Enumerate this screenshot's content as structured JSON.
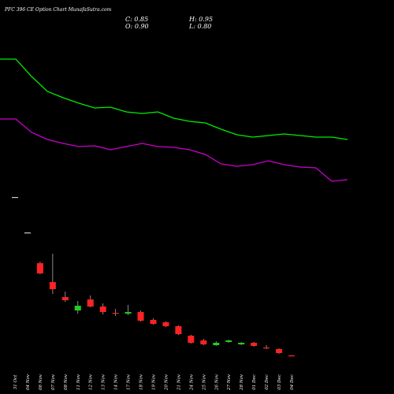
{
  "header": {
    "title": "PFC 396  CE Option  Chart MunafaSutra.com",
    "open_label": "O:",
    "open_value": "0.90",
    "high_label": "H:",
    "high_value": "0.95",
    "low_label": "L:",
    "low_value": "0.80",
    "close_label": "C:",
    "close_value": "0.85"
  },
  "colors": {
    "up": "#22cc22",
    "down": "#ff2222",
    "neutral": "#cccccc",
    "ma_fast": "#00ee00",
    "ma_slow": "#cc00cc",
    "background": "#000000"
  },
  "chart_data": {
    "type": "candlestick",
    "categories": [
      "31 Oct",
      "04 Nov",
      "06 Nov",
      "07 Nov",
      "08 Nov",
      "11 Nov",
      "12 Nov",
      "13 Nov",
      "14 Nov",
      "17 Nov",
      "18 Nov",
      "19 Nov",
      "20 Nov",
      "21 Nov",
      "24 Nov",
      "25 Nov",
      "26 Nov",
      "27 Nov",
      "28 Nov",
      "01 Dec",
      "02 Dec",
      "03 Dec",
      "04 Dec"
    ],
    "candles": [
      {
        "o": 21.0,
        "h": 21.0,
        "l": 21.0,
        "c": 21.0
      },
      {
        "o": 16.5,
        "h": 16.5,
        "l": 16.5,
        "c": 16.5
      },
      {
        "o": 12.6,
        "h": 12.8,
        "l": 11.2,
        "c": 11.3
      },
      {
        "o": 10.2,
        "h": 13.8,
        "l": 8.7,
        "c": 9.3
      },
      {
        "o": 8.3,
        "h": 9.0,
        "l": 7.7,
        "c": 7.9
      },
      {
        "o": 6.6,
        "h": 7.8,
        "l": 6.2,
        "c": 7.2
      },
      {
        "o": 8.0,
        "h": 8.5,
        "l": 7.0,
        "c": 7.1
      },
      {
        "o": 7.1,
        "h": 7.5,
        "l": 6.1,
        "c": 6.4
      },
      {
        "o": 6.3,
        "h": 6.8,
        "l": 5.9,
        "c": 6.2
      },
      {
        "o": 6.2,
        "h": 7.3,
        "l": 6.0,
        "c": 6.4
      },
      {
        "o": 6.4,
        "h": 6.6,
        "l": 5.2,
        "c": 5.3
      },
      {
        "o": 5.4,
        "h": 5.6,
        "l": 4.8,
        "c": 4.9
      },
      {
        "o": 5.1,
        "h": 5.2,
        "l": 4.5,
        "c": 4.6
      },
      {
        "o": 4.6,
        "h": 4.7,
        "l": 3.5,
        "c": 3.6
      },
      {
        "o": 3.4,
        "h": 3.5,
        "l": 2.4,
        "c": 2.5
      },
      {
        "o": 2.8,
        "h": 3.0,
        "l": 2.2,
        "c": 2.3
      },
      {
        "o": 2.2,
        "h": 2.7,
        "l": 2.1,
        "c": 2.5
      },
      {
        "o": 2.6,
        "h": 2.9,
        "l": 2.5,
        "c": 2.8
      },
      {
        "o": 2.3,
        "h": 2.6,
        "l": 2.2,
        "c": 2.5
      },
      {
        "o": 2.5,
        "h": 2.6,
        "l": 2.0,
        "c": 2.1
      },
      {
        "o": 1.9,
        "h": 2.2,
        "l": 1.7,
        "c": 1.8
      },
      {
        "o": 1.7,
        "h": 1.8,
        "l": 1.1,
        "c": 1.2
      },
      {
        "o": 0.9,
        "h": 0.95,
        "l": 0.8,
        "c": 0.85
      }
    ],
    "ma_fast": [
      38.5,
      38.5,
      36.3,
      34.4,
      33.6,
      32.9,
      32.3,
      32.4,
      31.8,
      31.6,
      31.8,
      31.0,
      30.6,
      30.4,
      29.6,
      28.9,
      28.6,
      28.8,
      29.0,
      28.8,
      28.6,
      28.6,
      28.3
    ],
    "ma_slow": [
      30.9,
      30.9,
      29.2,
      28.3,
      27.8,
      27.4,
      27.5,
      27.0,
      27.4,
      27.8,
      27.4,
      27.3,
      27.0,
      26.4,
      25.2,
      24.9,
      25.1,
      25.6,
      25.1,
      24.8,
      24.7,
      23.0,
      23.2
    ],
    "ylim": [
      0,
      44
    ]
  }
}
